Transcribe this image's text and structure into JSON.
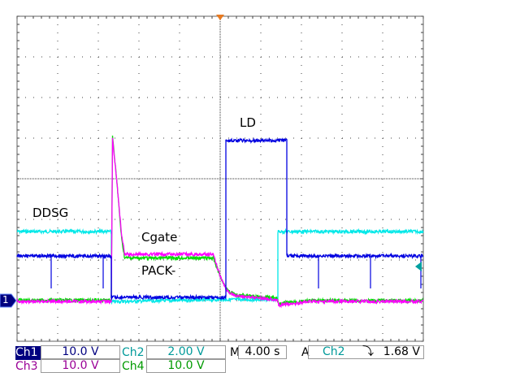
{
  "chart_data": {
    "type": "line",
    "title": "",
    "xlabel": "",
    "ylabel": "",
    "x_units": "s",
    "xlim": [
      -20,
      20
    ],
    "x_divisions": 10,
    "y_divisions": 8,
    "grid": true,
    "annotations": [
      {
        "text": "LD",
        "channel": "Ch1"
      },
      {
        "text": "DDSG",
        "channel": "Ch2"
      },
      {
        "text": "Cgate",
        "channel": "Ch3"
      },
      {
        "text": "PACK-",
        "channel": "Ch4"
      }
    ],
    "series": [
      {
        "channel": "Ch1",
        "color": "#0000e0",
        "volts_per_div": 10.0,
        "points": [
          [
            -20,
            11
          ],
          [
            -10.72,
            11
          ],
          [
            -10.72,
            0.8
          ],
          [
            0.56,
            0.8
          ],
          [
            0.56,
            39.4
          ],
          [
            6.56,
            39.4
          ],
          [
            6.56,
            11
          ],
          [
            20,
            11
          ]
        ],
        "spikes_down": [
          [
            -16.64,
            3
          ],
          [
            -11.52,
            3
          ],
          [
            9.68,
            3
          ],
          [
            14.8,
            3
          ],
          [
            19.76,
            3
          ]
        ]
      },
      {
        "channel": "Ch2",
        "color": "#00e8e8",
        "volts_per_div": 2.0,
        "points": [
          [
            -20,
            3.4
          ],
          [
            -10.72,
            3.4
          ],
          [
            -10.72,
            -0.05
          ],
          [
            0.5,
            0.05
          ],
          [
            5.68,
            0.05
          ],
          [
            5.68,
            3.4
          ],
          [
            20,
            3.4
          ]
        ]
      },
      {
        "channel": "Ch3",
        "color": "#ff00ff",
        "volts_per_div": 10.0,
        "points": [
          [
            -20,
            -0.2
          ],
          [
            -10.72,
            -0.2
          ],
          [
            -10.6,
            40
          ],
          [
            -10.2,
            30
          ],
          [
            -9.7,
            16
          ],
          [
            -9.4,
            11.4
          ],
          [
            -0.7,
            11.4
          ],
          [
            0.0,
            6
          ],
          [
            0.7,
            2.2
          ],
          [
            1.5,
            1.2
          ],
          [
            5.6,
            0.3
          ],
          [
            5.76,
            -1.2
          ],
          [
            7,
            -0.8
          ],
          [
            9,
            -0.2
          ],
          [
            20,
            -0.2
          ]
        ]
      },
      {
        "channel": "Ch4",
        "color": "#00dd00",
        "volts_per_div": 10.0,
        "points": [
          [
            -20,
            0.1
          ],
          [
            -10.72,
            0.1
          ],
          [
            -10.6,
            40.5
          ],
          [
            -10.2,
            30
          ],
          [
            -9.7,
            15
          ],
          [
            -9.4,
            10.5
          ],
          [
            -0.7,
            10.5
          ],
          [
            0.0,
            6
          ],
          [
            0.7,
            2.6
          ],
          [
            1.5,
            1.4
          ],
          [
            5.6,
            0.6
          ],
          [
            5.76,
            -0.8
          ],
          [
            7,
            -0.4
          ],
          [
            9,
            0
          ],
          [
            20,
            0
          ]
        ]
      }
    ]
  },
  "ground_marker": "1",
  "status": {
    "ch1_label": "Ch1",
    "ch1_scale": "10.0 V",
    "ch2_label": "Ch2",
    "ch2_scale": "2.00 V",
    "ch3_label": "Ch3",
    "ch3_scale": "10.0 V",
    "ch4_label": "Ch4",
    "ch4_scale": "10.0 V",
    "time_label": "M",
    "time_scale": "4.00 s",
    "trigger_label": "A",
    "trigger_source": "Ch2",
    "trigger_slope": "falling-edge-icon",
    "trigger_slope_glyph": "⤵",
    "trigger_level": "1.68 V"
  },
  "colors": {
    "ch1": "#000080",
    "ch2": "#009a9a",
    "ch3": "#9a0096",
    "ch4": "#009a00",
    "trigger_marker": "#e87a20"
  }
}
